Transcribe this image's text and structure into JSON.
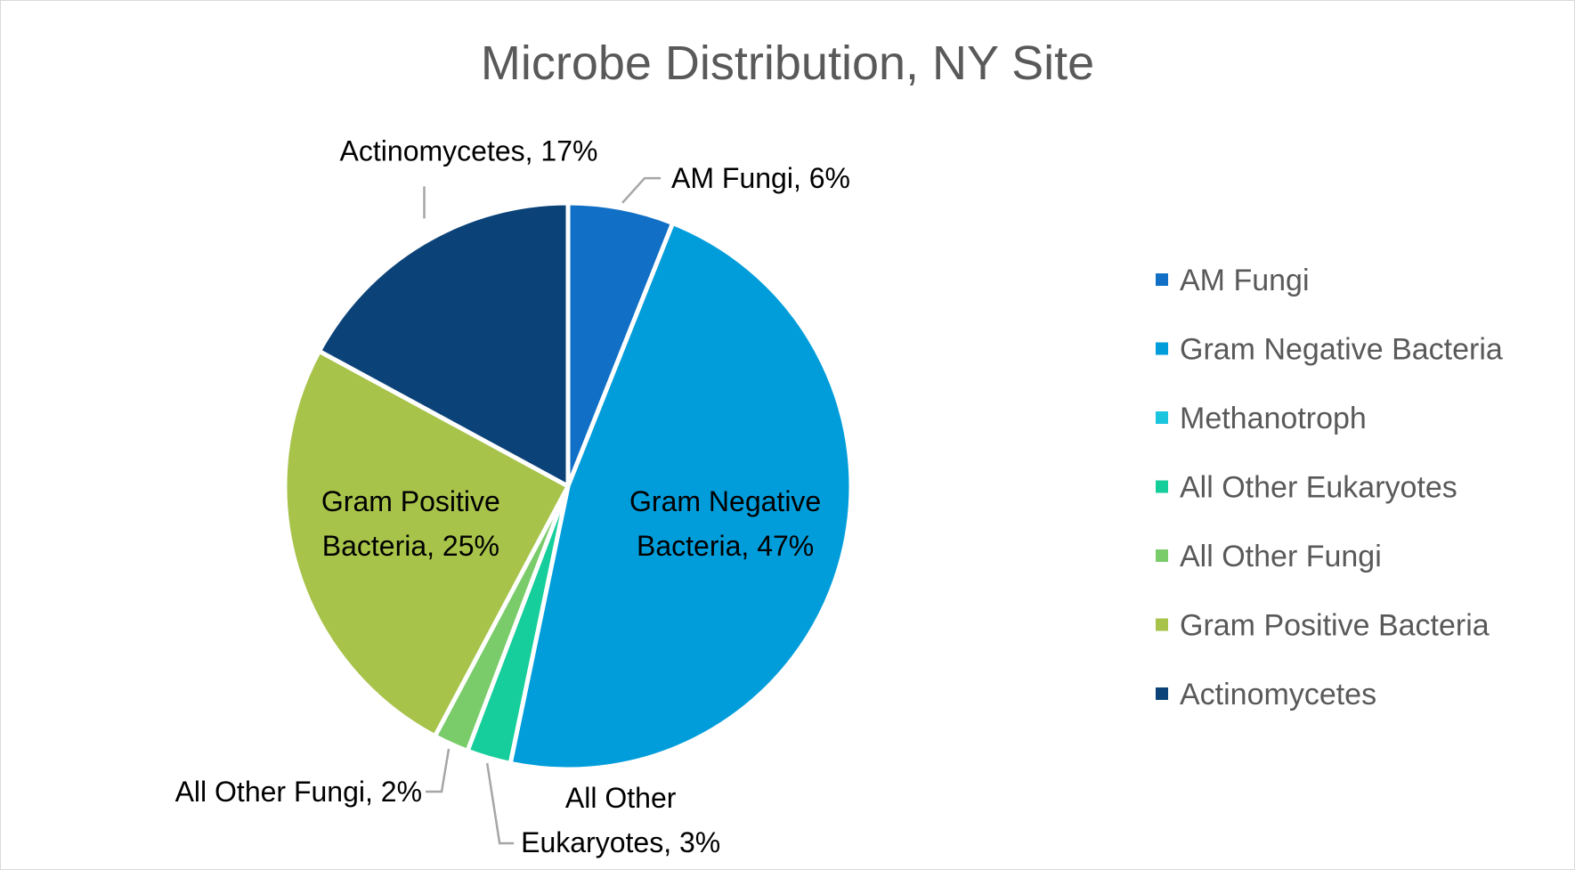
{
  "chart_data": {
    "type": "pie",
    "title": "Microbe Distribution, NY Site",
    "legend_position": "right",
    "slices": [
      {
        "name": "AM Fungi",
        "value": 6,
        "color": "#1170C6",
        "label_lines": [
          "AM Fungi, 6%"
        ],
        "label_mode": "leader-right"
      },
      {
        "name": "Gram Negative Bacteria",
        "value": 47,
        "color": "#019DDB",
        "label_lines": [
          "Gram Negative",
          "Bacteria, 47%"
        ],
        "label_mode": "inside"
      },
      {
        "name": "Methanotroph",
        "value": 0,
        "color": "#1AC5DD",
        "label_lines": [],
        "label_mode": "none"
      },
      {
        "name": "All Other Eukaryotes",
        "value": 2.5,
        "color": "#16CE9B",
        "label_lines": [
          "All Other",
          "Eukaryotes, 3%"
        ],
        "label_mode": "leader-below"
      },
      {
        "name": "All Other Fungi",
        "value": 2,
        "color": "#7ACB6A",
        "label_lines": [
          "All Other Fungi, 2%"
        ],
        "label_mode": "leader-left"
      },
      {
        "name": "Gram Positive Bacteria",
        "value": 25,
        "color": "#A7C34A",
        "label_lines": [
          "Gram Positive",
          "Bacteria, 25%"
        ],
        "label_mode": "inside"
      },
      {
        "name": "Actinomycetes",
        "value": 17,
        "color": "#0B4378",
        "label_lines": [
          "Actinomycetes, 17%"
        ],
        "label_mode": "leader-above"
      }
    ]
  }
}
